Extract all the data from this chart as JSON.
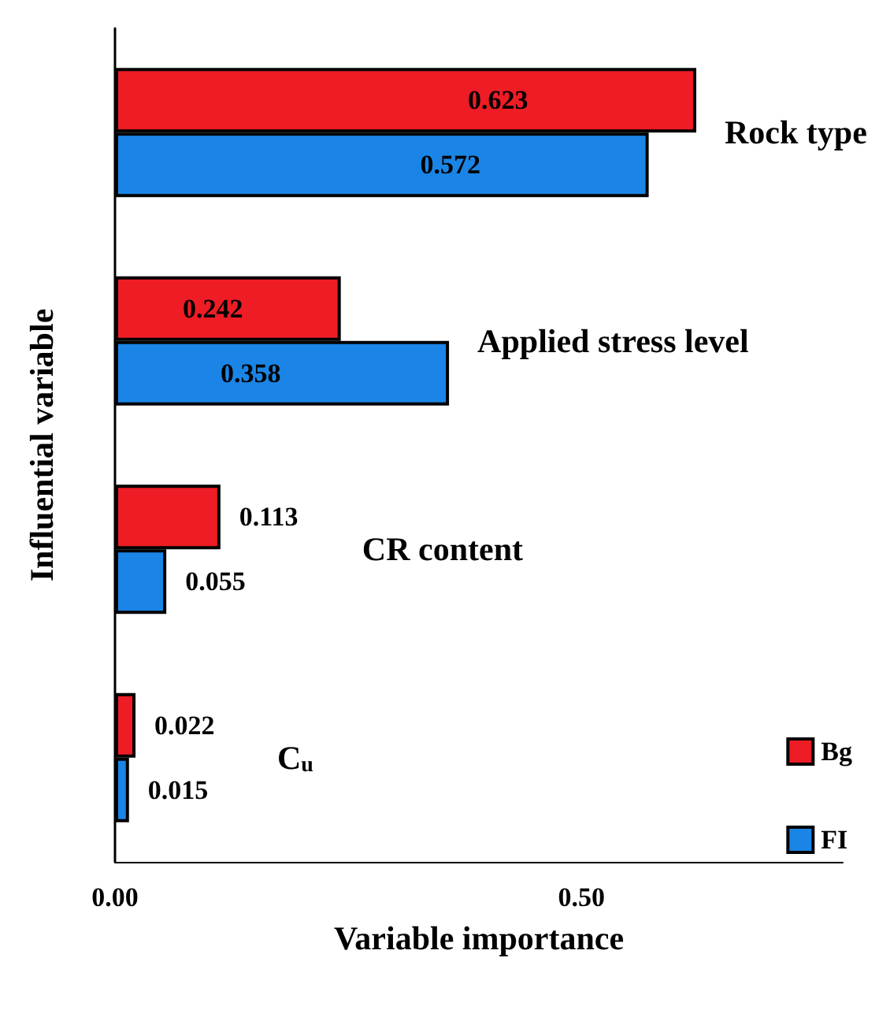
{
  "chart_data": {
    "type": "bar",
    "orientation": "horizontal",
    "xlabel": "Variable importance",
    "ylabel": "Influential variable",
    "categories": [
      "Rock type",
      "Applied stress level",
      "CR content",
      "C$_{u}$"
    ],
    "series": [
      {
        "name": "Bg",
        "color": "#ee1c25",
        "values": [
          0.623,
          0.242,
          0.113,
          0.022
        ]
      },
      {
        "name": "FI",
        "color": "#1a85e6",
        "values": [
          0.572,
          0.358,
          0.055,
          0.015
        ]
      }
    ],
    "xlim": [
      0,
      0.78
    ],
    "xticks": [
      {
        "value": 0,
        "label": "0.00"
      },
      {
        "value": 0.5,
        "label": "0.50"
      }
    ],
    "data_labels": true,
    "grid": false,
    "legend": "right"
  }
}
